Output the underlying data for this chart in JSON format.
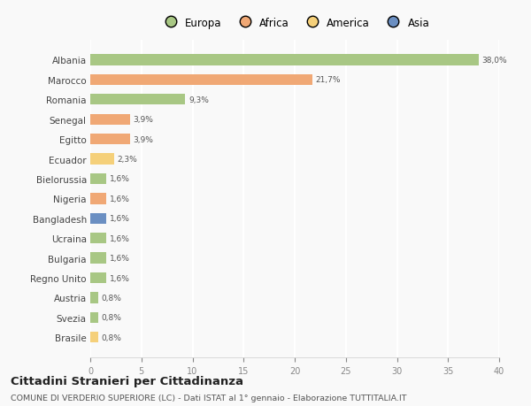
{
  "categories": [
    "Albania",
    "Marocco",
    "Romania",
    "Senegal",
    "Egitto",
    "Ecuador",
    "Bielorussia",
    "Nigeria",
    "Bangladesh",
    "Ucraina",
    "Bulgaria",
    "Regno Unito",
    "Austria",
    "Svezia",
    "Brasile"
  ],
  "values": [
    38.0,
    21.7,
    9.3,
    3.9,
    3.9,
    2.3,
    1.6,
    1.6,
    1.6,
    1.6,
    1.6,
    1.6,
    0.8,
    0.8,
    0.8
  ],
  "labels": [
    "38,0%",
    "21,7%",
    "9,3%",
    "3,9%",
    "3,9%",
    "2,3%",
    "1,6%",
    "1,6%",
    "1,6%",
    "1,6%",
    "1,6%",
    "1,6%",
    "0,8%",
    "0,8%",
    "0,8%"
  ],
  "colors": [
    "#a8c784",
    "#f0a875",
    "#a8c784",
    "#f0a875",
    "#f0a875",
    "#f5d07a",
    "#a8c784",
    "#f0a875",
    "#6b8fc2",
    "#a8c784",
    "#a8c784",
    "#a8c784",
    "#a8c784",
    "#a8c784",
    "#f5d07a"
  ],
  "legend_labels": [
    "Europa",
    "Africa",
    "America",
    "Asia"
  ],
  "legend_colors": [
    "#a8c784",
    "#f0a875",
    "#f5d07a",
    "#6b8fc2"
  ],
  "title": "Cittadini Stranieri per Cittadinanza",
  "subtitle": "COMUNE DI VERDERIO SUPERIORE (LC) - Dati ISTAT al 1° gennaio - Elaborazione TUTTITALIA.IT",
  "xlim": [
    0,
    40
  ],
  "xticks": [
    0,
    5,
    10,
    15,
    20,
    25,
    30,
    35,
    40
  ],
  "background_color": "#f9f9f9",
  "grid_color": "#ffffff",
  "bar_height": 0.55
}
